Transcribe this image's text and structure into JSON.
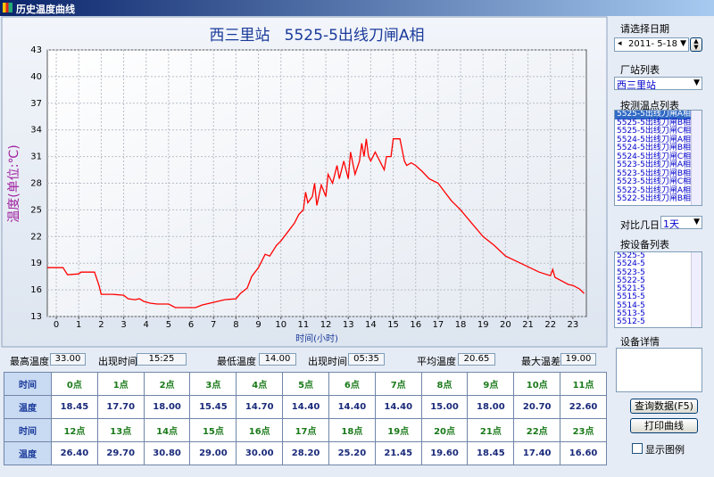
{
  "window_title": "历史温度曲线",
  "chart_data": {
    "type": "line",
    "title": "西三里站   5525-5出线刀闸A相",
    "x_label": "时间(小时)",
    "y_label": "温度(单位:℃)",
    "x": [
      -0.4,
      0.3,
      0.5,
      1.0,
      1.1,
      1.7,
      1.9,
      2.0,
      2.5,
      3.0,
      3.2,
      3.5,
      3.7,
      3.9,
      4.2,
      4.5,
      5.0,
      5.3,
      6.2,
      6.5,
      7.0,
      7.5,
      8.0,
      8.2,
      8.5,
      8.7,
      9.0,
      9.3,
      9.5,
      9.8,
      10.0,
      10.3,
      10.6,
      10.8,
      11.0,
      11.1,
      11.2,
      11.4,
      11.5,
      11.6,
      11.8,
      12.0,
      12.1,
      12.3,
      12.5,
      12.6,
      12.8,
      13.0,
      13.1,
      13.3,
      13.5,
      13.6,
      13.7,
      13.8,
      13.9,
      14.0,
      14.2,
      14.4,
      14.6,
      14.7,
      14.9,
      15.0,
      15.3,
      15.5,
      15.6,
      15.8,
      16.0,
      16.3,
      16.6,
      17.0,
      17.3,
      17.6,
      18.0,
      18.5,
      19.0,
      19.5,
      20.0,
      20.5,
      21.0,
      21.5,
      22.0,
      22.1,
      22.2,
      22.5,
      22.8,
      23.0,
      23.3,
      23.5
    ],
    "series": [
      {
        "color": "#ff0000",
        "values": [
          18.5,
          18.5,
          17.7,
          17.8,
          18.0,
          18.0,
          16.5,
          15.5,
          15.5,
          15.4,
          15.0,
          14.9,
          15.0,
          14.7,
          14.5,
          14.4,
          14.4,
          14.0,
          14.0,
          14.3,
          14.6,
          14.9,
          15.0,
          15.6,
          16.2,
          17.5,
          18.5,
          20.0,
          19.8,
          21.0,
          21.5,
          22.5,
          23.5,
          24.5,
          25.0,
          27.0,
          25.8,
          26.5,
          28.0,
          25.5,
          27.8,
          26.5,
          29.0,
          28.0,
          30.0,
          28.5,
          30.5,
          28.5,
          31.5,
          29.0,
          30.5,
          32.5,
          31.0,
          33.0,
          31.0,
          30.5,
          31.5,
          30.5,
          29.5,
          31.0,
          31.0,
          33.0,
          33.0,
          30.5,
          30.0,
          30.3,
          30.0,
          29.3,
          28.5,
          28.0,
          27.0,
          26.0,
          25.0,
          23.5,
          22.0,
          21.0,
          19.8,
          19.2,
          18.6,
          18.0,
          17.6,
          18.3,
          17.4,
          17.0,
          16.6,
          16.5,
          16.1,
          15.6
        ]
      }
    ],
    "xlim": [
      -0.4,
      23.6
    ],
    "ylim": [
      13,
      43
    ],
    "xticks": [
      0,
      1,
      2,
      3,
      4,
      5,
      6,
      7,
      8,
      9,
      10,
      11,
      12,
      13,
      14,
      15,
      16,
      17,
      18,
      19,
      20,
      21,
      22,
      23
    ],
    "yticks": [
      13,
      16,
      19,
      22,
      25,
      28,
      31,
      34,
      37,
      40,
      43
    ],
    "grid": true
  },
  "stats": [
    {
      "label": "最高温度",
      "value": "33.00"
    },
    {
      "label": "出现时间",
      "value": "15:25"
    },
    {
      "label": "最低温度",
      "value": "14.00"
    },
    {
      "label": "出现时间",
      "value": "05:35"
    },
    {
      "label": "平均温度",
      "value": "20.65"
    },
    {
      "label": "最大温差",
      "value": "19.00"
    }
  ],
  "table": {
    "rows": [
      [
        "时间",
        "0点",
        "1点",
        "2点",
        "3点",
        "4点",
        "5点",
        "6点",
        "7点",
        "8点",
        "9点",
        "10点",
        "11点"
      ],
      [
        "温度",
        "18.45",
        "17.70",
        "18.00",
        "15.45",
        "14.70",
        "14.40",
        "14.40",
        "14.40",
        "15.00",
        "18.00",
        "20.70",
        "22.60"
      ],
      [
        "时间",
        "12点",
        "13点",
        "14点",
        "15点",
        "16点",
        "17点",
        "18点",
        "19点",
        "20点",
        "21点",
        "22点",
        "23点"
      ],
      [
        "温度",
        "26.40",
        "29.70",
        "30.80",
        "29.00",
        "30.00",
        "28.20",
        "25.20",
        "21.45",
        "19.60",
        "18.45",
        "17.40",
        "16.60"
      ]
    ]
  },
  "side": {
    "date_label": "请选择日期",
    "date": "2011- 5-18",
    "station_label": "厂站列表",
    "station": "西三里站",
    "point_label": "按测温点列表",
    "points": [
      "5525-5出线刀闸A相",
      "5525-5出线刀闸B相",
      "5525-5出线刀闸C相",
      "5524-5出线刀闸A相",
      "5524-5出线刀闸B相",
      "5524-5出线刀闸C相",
      "5523-5出线刀闸A相",
      "5523-5出线刀闸B相",
      "5523-5出线刀闸C相",
      "5522-5出线刀闸A相",
      "5522-5出线刀闸B相"
    ],
    "days_label": "对比几日",
    "days": "1天",
    "device_label": "按设备列表",
    "devices": [
      "5525-5",
      "5524-5",
      "5523-5",
      "5522-5",
      "5521-5",
      "5515-5",
      "5514-5",
      "5513-5",
      "5512-5"
    ],
    "detail_label": "设备详情",
    "query_button": "查询数据(F5)",
    "print_button": "打印曲线",
    "legend_checkbox": "显示图例"
  }
}
